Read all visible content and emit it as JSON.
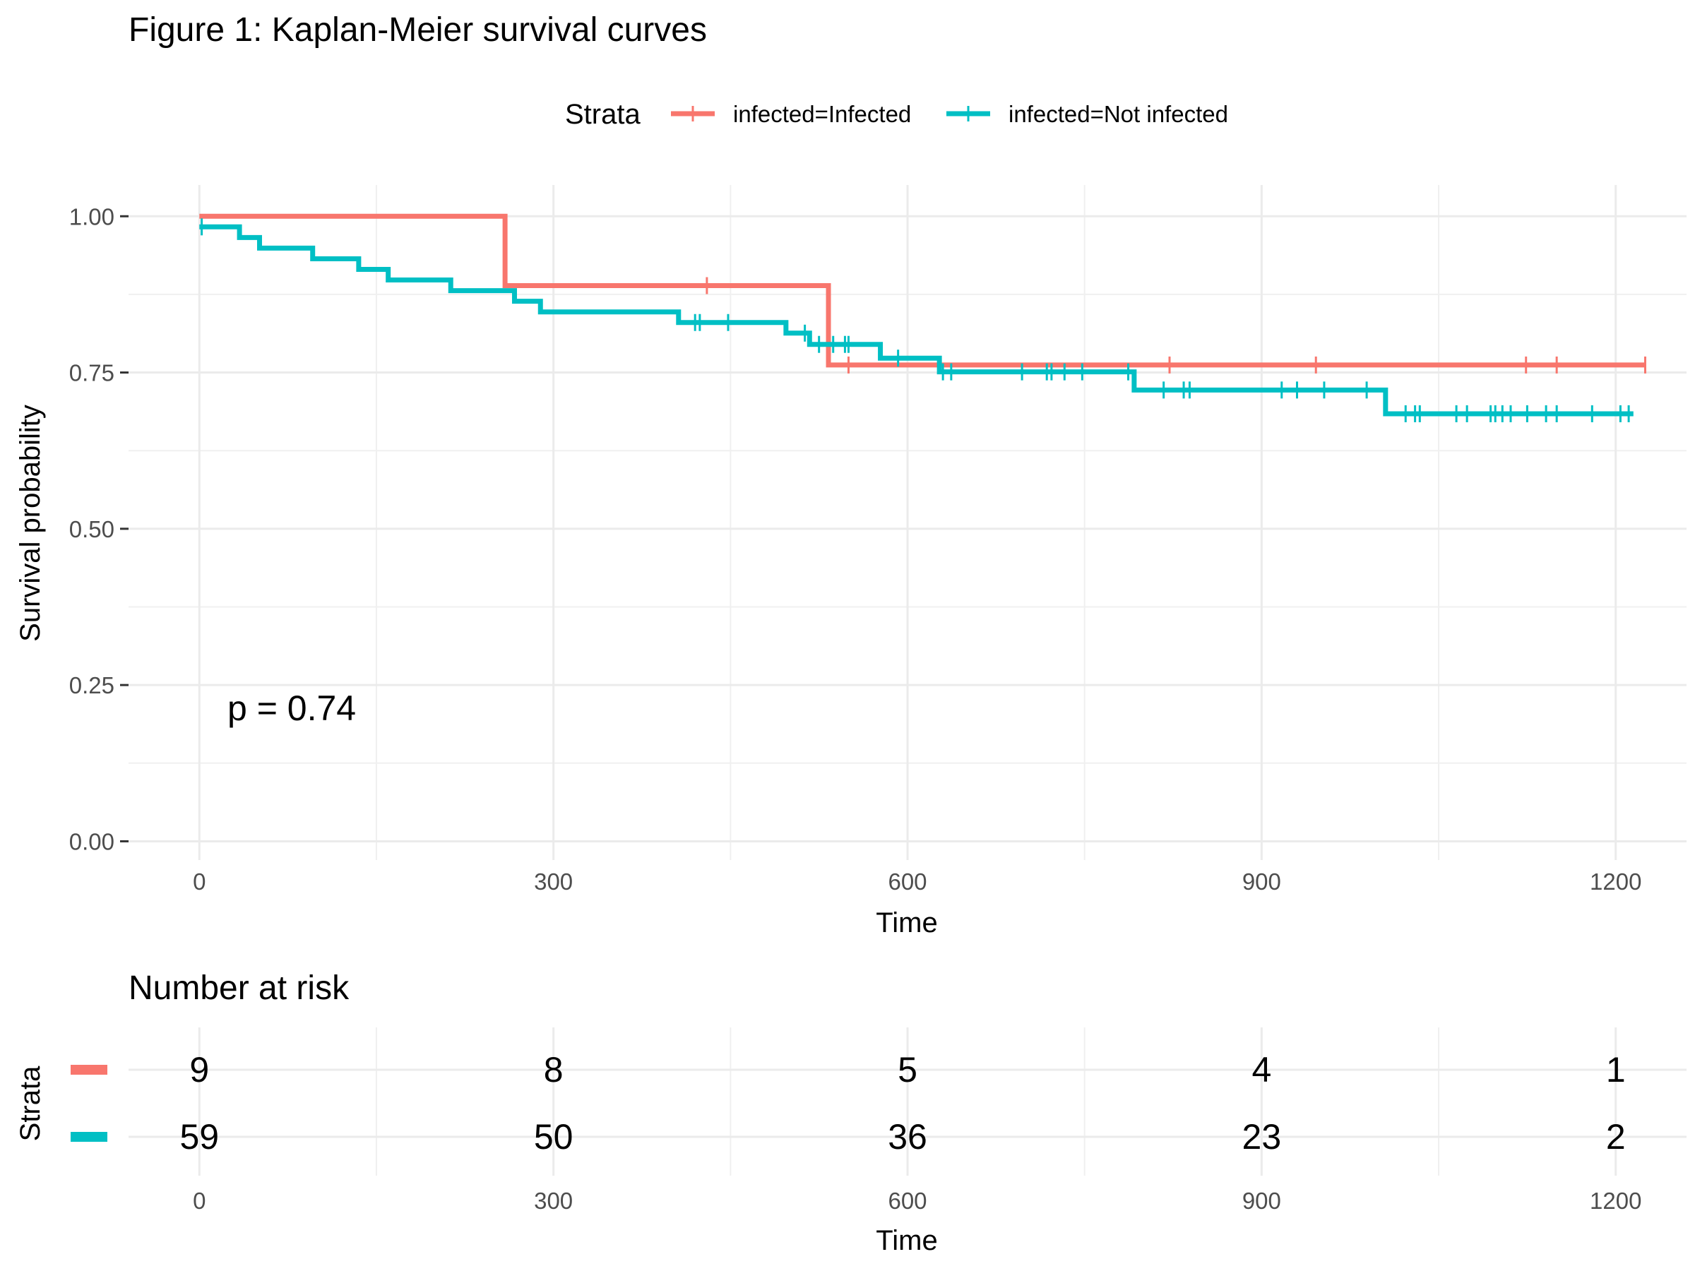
{
  "chart_data": {
    "type": "line",
    "title": "Figure 1: Kaplan-Meier survival curves",
    "xlabel": "Time",
    "ylabel": "Survival probability",
    "xlim": [
      -60,
      1260
    ],
    "ylim": [
      -0.03,
      1.05
    ],
    "xticks": [
      0,
      300,
      600,
      900,
      1200
    ],
    "yticks": [
      0.0,
      0.25,
      0.5,
      0.75,
      1.0
    ],
    "ytick_labels": [
      "0.00",
      "0.25",
      "0.50",
      "0.75",
      "1.00"
    ],
    "grid": true,
    "legend": {
      "title": "Strata",
      "placement": "top",
      "entries": [
        "infected=Infected",
        "infected=Not infected"
      ]
    },
    "annotation": "p = 0.74",
    "series": [
      {
        "name": "infected=Infected",
        "color": "#F8766D",
        "steps": [
          [
            0,
            1.0
          ],
          [
            259,
            0.889
          ],
          [
            533,
            0.762
          ]
        ],
        "end_x": 1225,
        "censors": [
          [
            430,
            0.889
          ],
          [
            550,
            0.762
          ],
          [
            822,
            0.762
          ],
          [
            946,
            0.762
          ],
          [
            1124,
            0.762
          ],
          [
            1150,
            0.762
          ],
          [
            1225,
            0.762
          ]
        ]
      },
      {
        "name": "infected=Not infected",
        "color": "#00BFC4",
        "steps": [
          [
            0,
            0.983
          ],
          [
            34,
            0.966
          ],
          [
            51,
            0.949
          ],
          [
            96,
            0.932
          ],
          [
            135,
            0.915
          ],
          [
            160,
            0.898
          ],
          [
            213,
            0.881
          ],
          [
            267,
            0.864
          ],
          [
            289,
            0.847
          ],
          [
            406,
            0.83
          ],
          [
            497,
            0.813
          ],
          [
            517,
            0.795
          ],
          [
            577,
            0.773
          ],
          [
            627,
            0.751
          ],
          [
            792,
            0.722
          ],
          [
            1005,
            0.684
          ]
        ],
        "end_x": 1215,
        "censors": [
          [
            2,
            0.983
          ],
          [
            420,
            0.83
          ],
          [
            424,
            0.83
          ],
          [
            448,
            0.83
          ],
          [
            513,
            0.813
          ],
          [
            525,
            0.795
          ],
          [
            537,
            0.795
          ],
          [
            547,
            0.795
          ],
          [
            550,
            0.795
          ],
          [
            592,
            0.773
          ],
          [
            630,
            0.751
          ],
          [
            637,
            0.751
          ],
          [
            697,
            0.751
          ],
          [
            718,
            0.751
          ],
          [
            722,
            0.751
          ],
          [
            733,
            0.751
          ],
          [
            748,
            0.751
          ],
          [
            787,
            0.751
          ],
          [
            817,
            0.722
          ],
          [
            834,
            0.722
          ],
          [
            839,
            0.722
          ],
          [
            917,
            0.722
          ],
          [
            930,
            0.722
          ],
          [
            953,
            0.722
          ],
          [
            989,
            0.722
          ],
          [
            1022,
            0.684
          ],
          [
            1030,
            0.684
          ],
          [
            1034,
            0.684
          ],
          [
            1065,
            0.684
          ],
          [
            1074,
            0.684
          ],
          [
            1094,
            0.684
          ],
          [
            1098,
            0.684
          ],
          [
            1104,
            0.684
          ],
          [
            1111,
            0.684
          ],
          [
            1125,
            0.684
          ],
          [
            1141,
            0.684
          ],
          [
            1150,
            0.684
          ],
          [
            1180,
            0.684
          ],
          [
            1204,
            0.684
          ],
          [
            1211,
            0.684
          ]
        ]
      }
    ],
    "risk_table": {
      "title": "Number at risk",
      "ylabel": "Strata",
      "xlabel": "Time",
      "times": [
        0,
        300,
        600,
        900,
        1200
      ],
      "time_labels": [
        "0",
        "300",
        "600",
        "900",
        "1200"
      ],
      "rows": [
        {
          "name": "infected=Infected",
          "color": "#F8766D",
          "values": [
            "9",
            "8",
            "5",
            "4",
            "1"
          ]
        },
        {
          "name": "infected=Not infected",
          "color": "#00BFC4",
          "values": [
            "59",
            "50",
            "36",
            "23",
            "2"
          ]
        }
      ]
    }
  }
}
